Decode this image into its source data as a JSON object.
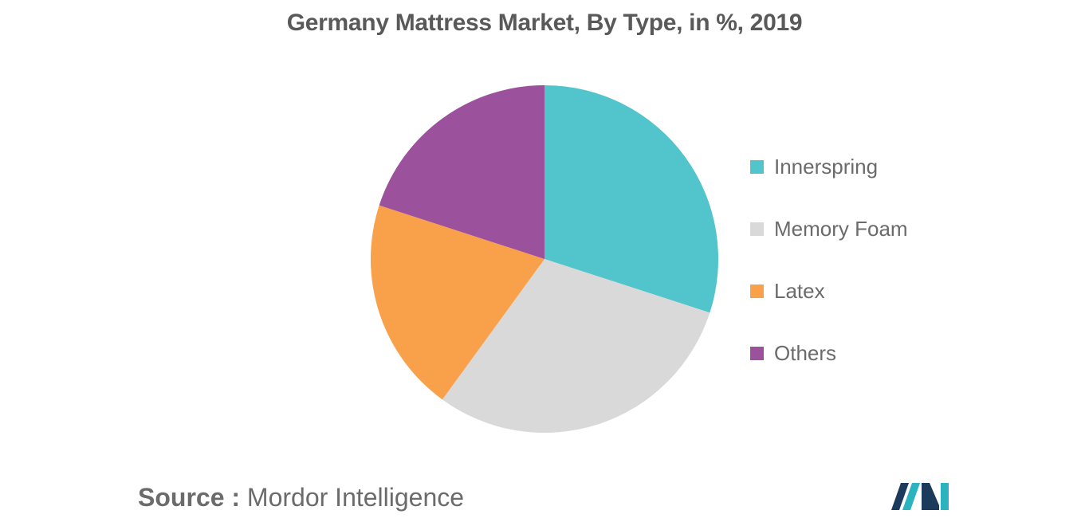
{
  "chart_data": {
    "type": "pie",
    "title": "Germany Mattress Market, By Type, in %, 2019",
    "slices": [
      {
        "label": "Innerspring",
        "value": 30,
        "color": "#52C4CB"
      },
      {
        "label": "Memory Foam",
        "value": 30,
        "color": "#D9D9D9"
      },
      {
        "label": "Latex",
        "value": 20,
        "color": "#F9A04A"
      },
      {
        "label": "Others",
        "value": 20,
        "color": "#9B519C"
      }
    ],
    "legend_position": "right"
  },
  "source": {
    "prefix": "Source :",
    "name": "Mordor Intelligence"
  },
  "logo": {
    "colors": [
      "#1B3A5C",
      "#2BB3C0"
    ]
  }
}
